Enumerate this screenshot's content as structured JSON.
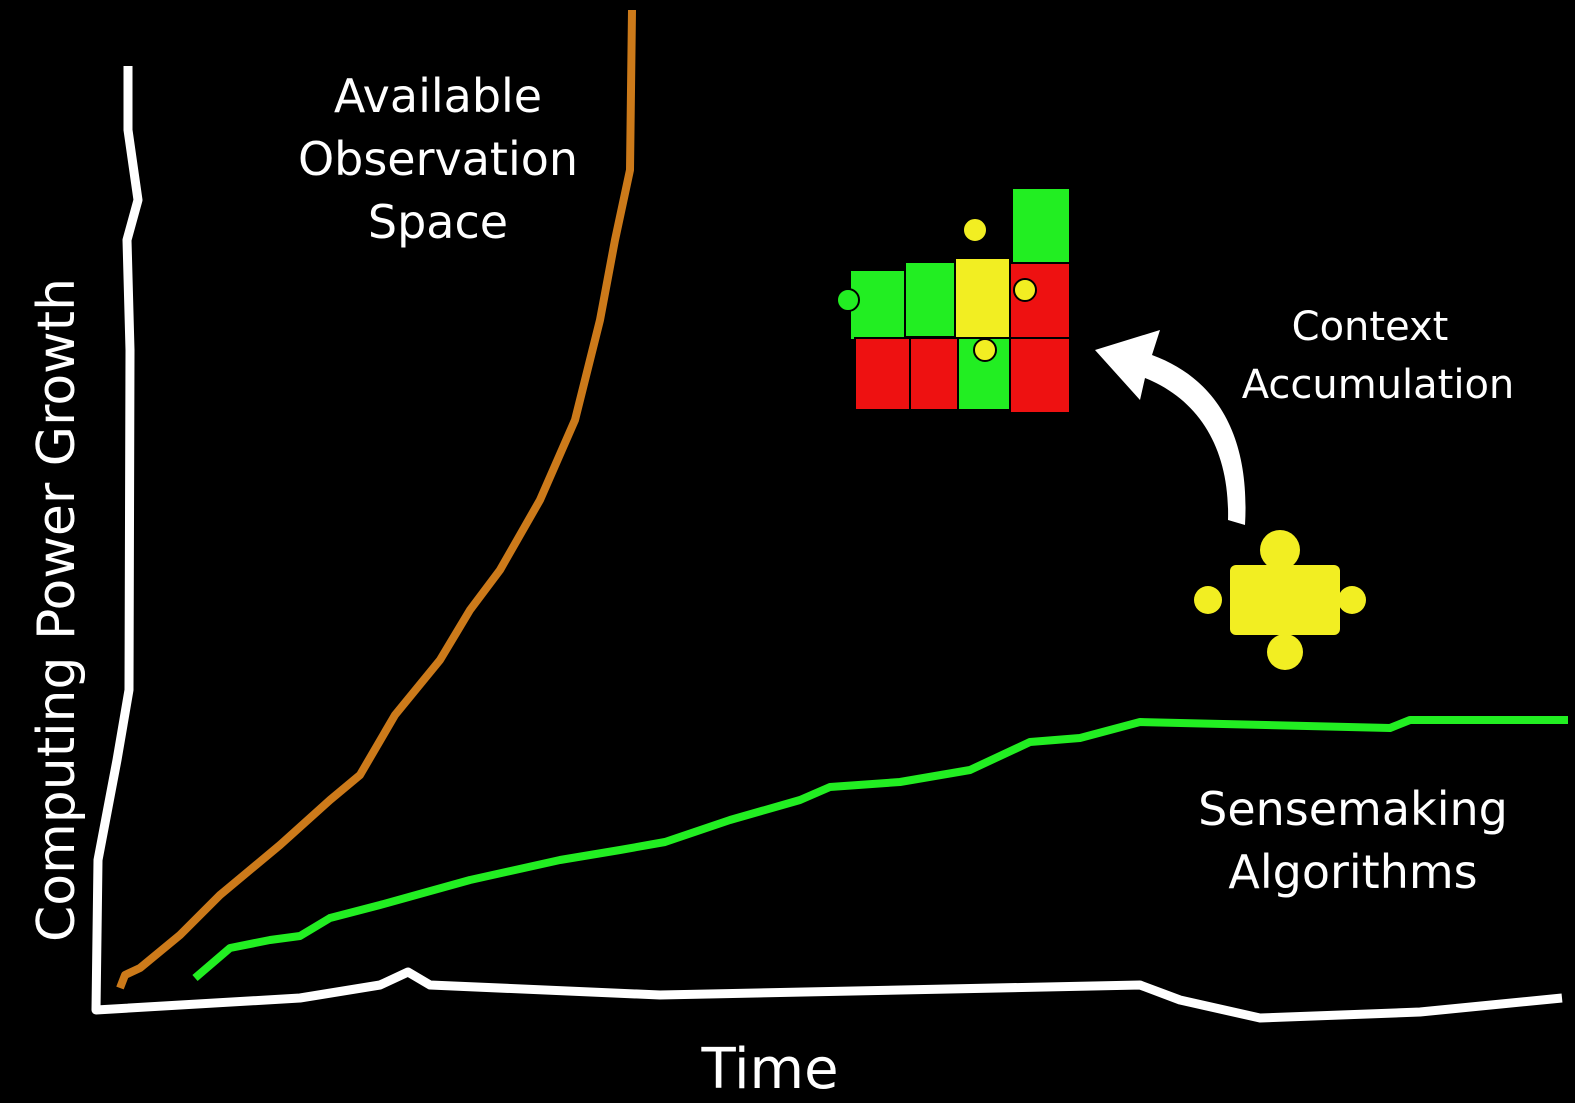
{
  "axes": {
    "y_label": "Computing Power Growth",
    "x_label": "Time"
  },
  "curves": [
    {
      "label_lines": [
        "Available",
        "Observation",
        "Space"
      ]
    },
    {
      "label_lines": [
        "Sensemaking",
        "Algorithms"
      ]
    }
  ],
  "annotation": {
    "label_lines": [
      "Context",
      "Accumulation"
    ]
  }
}
